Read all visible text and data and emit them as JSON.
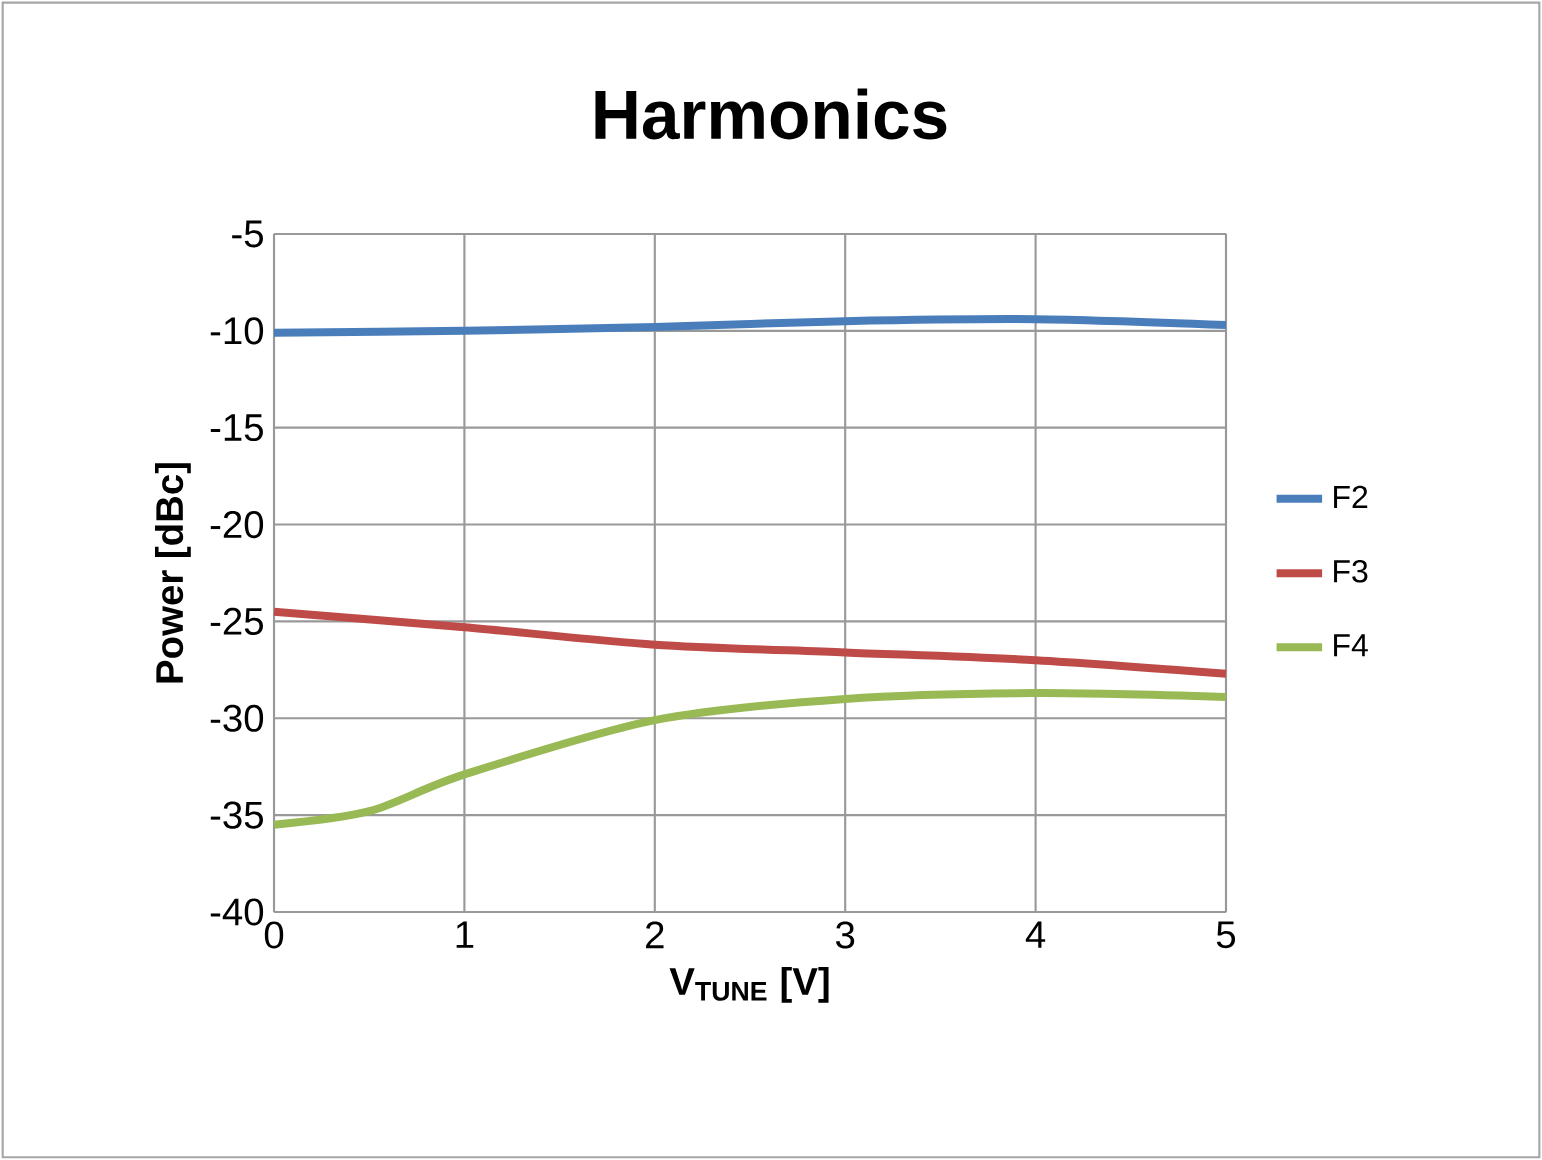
{
  "chart_data": {
    "type": "line",
    "title": "Harmonics",
    "xlabel": "V$_{TUNE}$ [V]",
    "ylabel": "Power [dBc]",
    "xlim": [
      0,
      5
    ],
    "xticks": [
      0,
      1,
      2,
      3,
      4,
      5
    ],
    "ylim": [
      -40,
      -5
    ],
    "yticks": [
      -40,
      -35,
      -30,
      -25,
      -20,
      -15,
      -10,
      -5
    ],
    "grid": true,
    "legend": "right",
    "series": [
      {
        "name": "F2",
        "color": "#4a7ebb",
        "x": [
          0,
          1,
          2,
          3,
          4,
          5
        ],
        "values": [
          -10.1,
          -10.0,
          -9.8,
          -9.5,
          -9.4,
          -9.7
        ]
      },
      {
        "name": "F3",
        "color": "#be4b48",
        "x": [
          0,
          1,
          2,
          3,
          4,
          5
        ],
        "values": [
          -24.5,
          -25.3,
          -26.2,
          -26.6,
          -27.0,
          -27.7
        ]
      },
      {
        "name": "F4",
        "color": "#98b954",
        "x": [
          0,
          0.5,
          1,
          2,
          3,
          4,
          5
        ],
        "values": [
          -35.5,
          -34.8,
          -32.9,
          -30.1,
          -29.0,
          -28.7,
          -28.9
        ]
      }
    ]
  }
}
